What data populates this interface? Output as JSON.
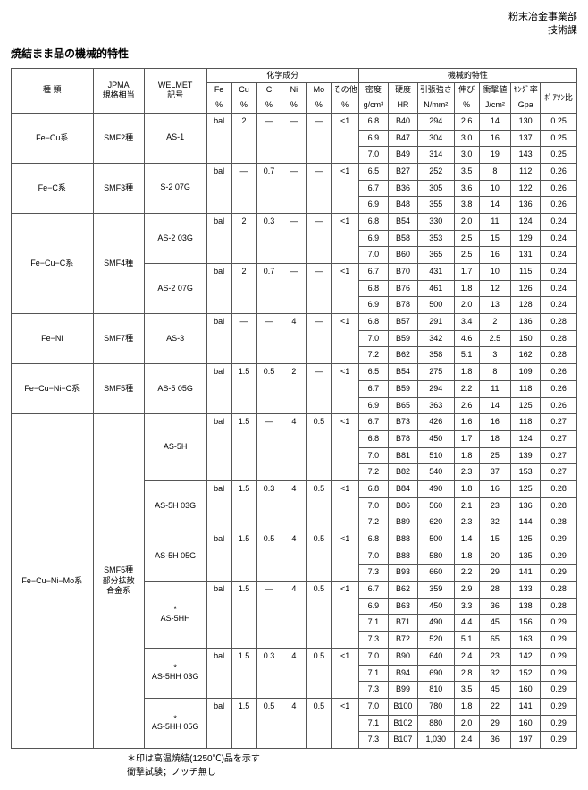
{
  "header": {
    "dept": "粉末冶金事業部",
    "section": "技術課"
  },
  "title": "焼結まま品の機械的特性",
  "cols": {
    "type": "種 類",
    "jpma": "JPMA",
    "jpma2": "規格相当",
    "welmet": "WELMET",
    "welmet2": "記号",
    "chem": "化学成分",
    "fe": "Fe",
    "cu": "Cu",
    "c": "C",
    "ni": "Ni",
    "mo": "Mo",
    "other": "その他",
    "pct": "%",
    "mech": "機械的特性",
    "dens": "密度",
    "dens_u": "g/cm³",
    "hard": "硬度",
    "hard_u": "HR",
    "tens": "引張強さ",
    "tens_u": "N/mm²",
    "elong": "伸び",
    "elong_u": "%",
    "imp": "衝撃値",
    "imp_u": "J/cm²",
    "young": "ﾔﾝｸﾞ率",
    "young_u": "Gpa",
    "pois": "ﾎﾟｱｿﾝ比"
  },
  "dash": "―",
  "bal": "bal",
  "lt1": "<1",
  "groups": [
    {
      "type": "Fe−Cu系",
      "jpma": "SMF2種",
      "mats": [
        {
          "wel": "AS-1",
          "chem": [
            "bal",
            "2",
            "―",
            "―",
            "―",
            "<1"
          ],
          "rows": [
            [
              "6.8",
              "B40",
              "294",
              "2.6",
              "14",
              "130",
              "0.25"
            ],
            [
              "6.9",
              "B47",
              "304",
              "3.0",
              "16",
              "137",
              "0.25"
            ],
            [
              "7.0",
              "B49",
              "314",
              "3.0",
              "19",
              "143",
              "0.25"
            ]
          ]
        }
      ]
    },
    {
      "type": "Fe−C系",
      "jpma": "SMF3種",
      "mats": [
        {
          "wel": "S-2 07G",
          "chem": [
            "bal",
            "―",
            "0.7",
            "―",
            "―",
            "<1"
          ],
          "rows": [
            [
              "6.5",
              "B27",
              "252",
              "3.5",
              "8",
              "112",
              "0.26"
            ],
            [
              "6.7",
              "B36",
              "305",
              "3.6",
              "10",
              "122",
              "0.26"
            ],
            [
              "6.9",
              "B48",
              "355",
              "3.8",
              "14",
              "136",
              "0.26"
            ]
          ]
        }
      ]
    },
    {
      "type": "Fe−Cu−C系",
      "jpma": "SMF4種",
      "mats": [
        {
          "wel": "AS-2 03G",
          "chem": [
            "bal",
            "2",
            "0.3",
            "―",
            "―",
            "<1"
          ],
          "rows": [
            [
              "6.8",
              "B54",
              "330",
              "2.0",
              "11",
              "124",
              "0.24"
            ],
            [
              "6.9",
              "B58",
              "353",
              "2.5",
              "15",
              "129",
              "0.24"
            ],
            [
              "7.0",
              "B60",
              "365",
              "2.5",
              "16",
              "131",
              "0.24"
            ]
          ]
        },
        {
          "wel": "AS-2 07G",
          "chem": [
            "bal",
            "2",
            "0.7",
            "―",
            "―",
            "<1"
          ],
          "rows": [
            [
              "6.7",
              "B70",
              "431",
              "1.7",
              "10",
              "115",
              "0.24"
            ],
            [
              "6.8",
              "B76",
              "461",
              "1.8",
              "12",
              "126",
              "0.24"
            ],
            [
              "6.9",
              "B78",
              "500",
              "2.0",
              "13",
              "128",
              "0.24"
            ]
          ]
        }
      ]
    },
    {
      "type": "Fe−Ni",
      "jpma": "SMF7種",
      "mats": [
        {
          "wel": "AS-3",
          "chem": [
            "bal",
            "―",
            "―",
            "4",
            "―",
            "<1"
          ],
          "rows": [
            [
              "6.8",
              "B57",
              "291",
              "3.4",
              "2",
              "136",
              "0.28"
            ],
            [
              "7.0",
              "B59",
              "342",
              "4.6",
              "2.5",
              "150",
              "0.28"
            ],
            [
              "7.2",
              "B62",
              "358",
              "5.1",
              "3",
              "162",
              "0.28"
            ]
          ]
        }
      ]
    },
    {
      "type": "Fe−Cu−Ni−C系",
      "jpma": "SMF5種",
      "mats": [
        {
          "wel": "AS-5 05G",
          "chem": [
            "bal",
            "1.5",
            "0.5",
            "2",
            "―",
            "<1"
          ],
          "rows": [
            [
              "6.5",
              "B54",
              "275",
              "1.8",
              "8",
              "109",
              "0.26"
            ],
            [
              "6.7",
              "B59",
              "294",
              "2.2",
              "11",
              "118",
              "0.26"
            ],
            [
              "6.9",
              "B65",
              "363",
              "2.6",
              "14",
              "125",
              "0.26"
            ]
          ]
        }
      ]
    },
    {
      "type": "Fe−Cu−Ni−Mo系",
      "jpma": "SMF5種\n部分拡散\n合金系",
      "mats": [
        {
          "wel": "AS-5H",
          "chem": [
            "bal",
            "1.5",
            "―",
            "4",
            "0.5",
            "<1"
          ],
          "rows": [
            [
              "6.7",
              "B73",
              "426",
              "1.6",
              "16",
              "118",
              "0.27"
            ],
            [
              "6.8",
              "B78",
              "450",
              "1.7",
              "18",
              "124",
              "0.27"
            ],
            [
              "7.0",
              "B81",
              "510",
              "1.8",
              "25",
              "139",
              "0.27"
            ],
            [
              "7.2",
              "B82",
              "540",
              "2.3",
              "37",
              "153",
              "0.27"
            ]
          ]
        },
        {
          "wel": "AS-5H 03G",
          "chem": [
            "bal",
            "1.5",
            "0.3",
            "4",
            "0.5",
            "<1"
          ],
          "rows": [
            [
              "6.8",
              "B84",
              "490",
              "1.8",
              "16",
              "125",
              "0.28"
            ],
            [
              "7.0",
              "B86",
              "560",
              "2.1",
              "23",
              "136",
              "0.28"
            ],
            [
              "7.2",
              "B89",
              "620",
              "2.3",
              "32",
              "144",
              "0.28"
            ]
          ]
        },
        {
          "wel": "AS-5H 05G",
          "chem": [
            "bal",
            "1.5",
            "0.5",
            "4",
            "0.5",
            "<1"
          ],
          "rows": [
            [
              "6.8",
              "B88",
              "500",
              "1.4",
              "15",
              "125",
              "0.29"
            ],
            [
              "7.0",
              "B88",
              "580",
              "1.8",
              "20",
              "135",
              "0.29"
            ],
            [
              "7.3",
              "B93",
              "660",
              "2.2",
              "29",
              "141",
              "0.29"
            ]
          ]
        },
        {
          "wel": "*\nAS-5HH",
          "chem": [
            "bal",
            "1.5",
            "―",
            "4",
            "0.5",
            "<1"
          ],
          "rows": [
            [
              "6.7",
              "B62",
              "359",
              "2.9",
              "28",
              "133",
              "0.28"
            ],
            [
              "6.9",
              "B63",
              "450",
              "3.3",
              "36",
              "138",
              "0.28"
            ],
            [
              "7.1",
              "B71",
              "490",
              "4.4",
              "45",
              "156",
              "0.29"
            ],
            [
              "7.3",
              "B72",
              "520",
              "5.1",
              "65",
              "163",
              "0.29"
            ]
          ]
        },
        {
          "wel": "*\nAS-5HH 03G",
          "chem": [
            "bal",
            "1.5",
            "0.3",
            "4",
            "0.5",
            "<1"
          ],
          "rows": [
            [
              "7.0",
              "B90",
              "640",
              "2.4",
              "23",
              "142",
              "0.29"
            ],
            [
              "7.1",
              "B94",
              "690",
              "2.8",
              "32",
              "152",
              "0.29"
            ],
            [
              "7.3",
              "B99",
              "810",
              "3.5",
              "45",
              "160",
              "0.29"
            ]
          ]
        },
        {
          "wel": "*\nAS-5HH 05G",
          "chem": [
            "bal",
            "1.5",
            "0.5",
            "4",
            "0.5",
            "<1"
          ],
          "rows": [
            [
              "7.0",
              "B100",
              "780",
              "1.8",
              "22",
              "141",
              "0.29"
            ],
            [
              "7.1",
              "B102",
              "880",
              "2.0",
              "29",
              "160",
              "0.29"
            ],
            [
              "7.3",
              "B107",
              "1,030",
              "2.4",
              "36",
              "197",
              "0.29"
            ]
          ]
        }
      ]
    }
  ],
  "notes": [
    "＊印は高温焼結(1250℃)品を示す",
    "衝撃試験；ノッチ無し"
  ]
}
